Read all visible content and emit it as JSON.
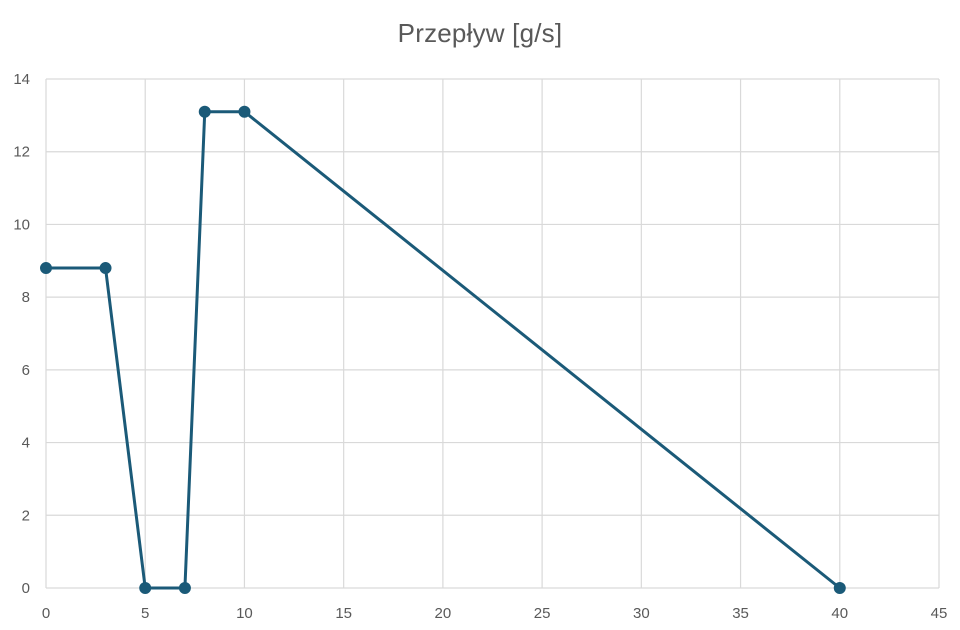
{
  "colors": {
    "series": "#1b5a78",
    "grid": "#d9d9d9",
    "text": "#595959",
    "background": "#ffffff"
  },
  "chart_data": {
    "type": "line",
    "title": "Przepływ [g/s]",
    "xlabel": "",
    "ylabel": "",
    "xlim": [
      0,
      45
    ],
    "ylim": [
      0,
      14
    ],
    "x_ticks": [
      0,
      5,
      10,
      15,
      20,
      25,
      30,
      35,
      40,
      45
    ],
    "y_ticks": [
      0,
      2,
      4,
      6,
      8,
      10,
      12,
      14
    ],
    "grid": true,
    "legend": "none",
    "markers": true,
    "series": [
      {
        "x": [
          0,
          3,
          5,
          7,
          8,
          10,
          40
        ],
        "y": [
          8.8,
          8.8,
          0,
          0,
          13.1,
          13.1,
          0
        ]
      }
    ]
  }
}
